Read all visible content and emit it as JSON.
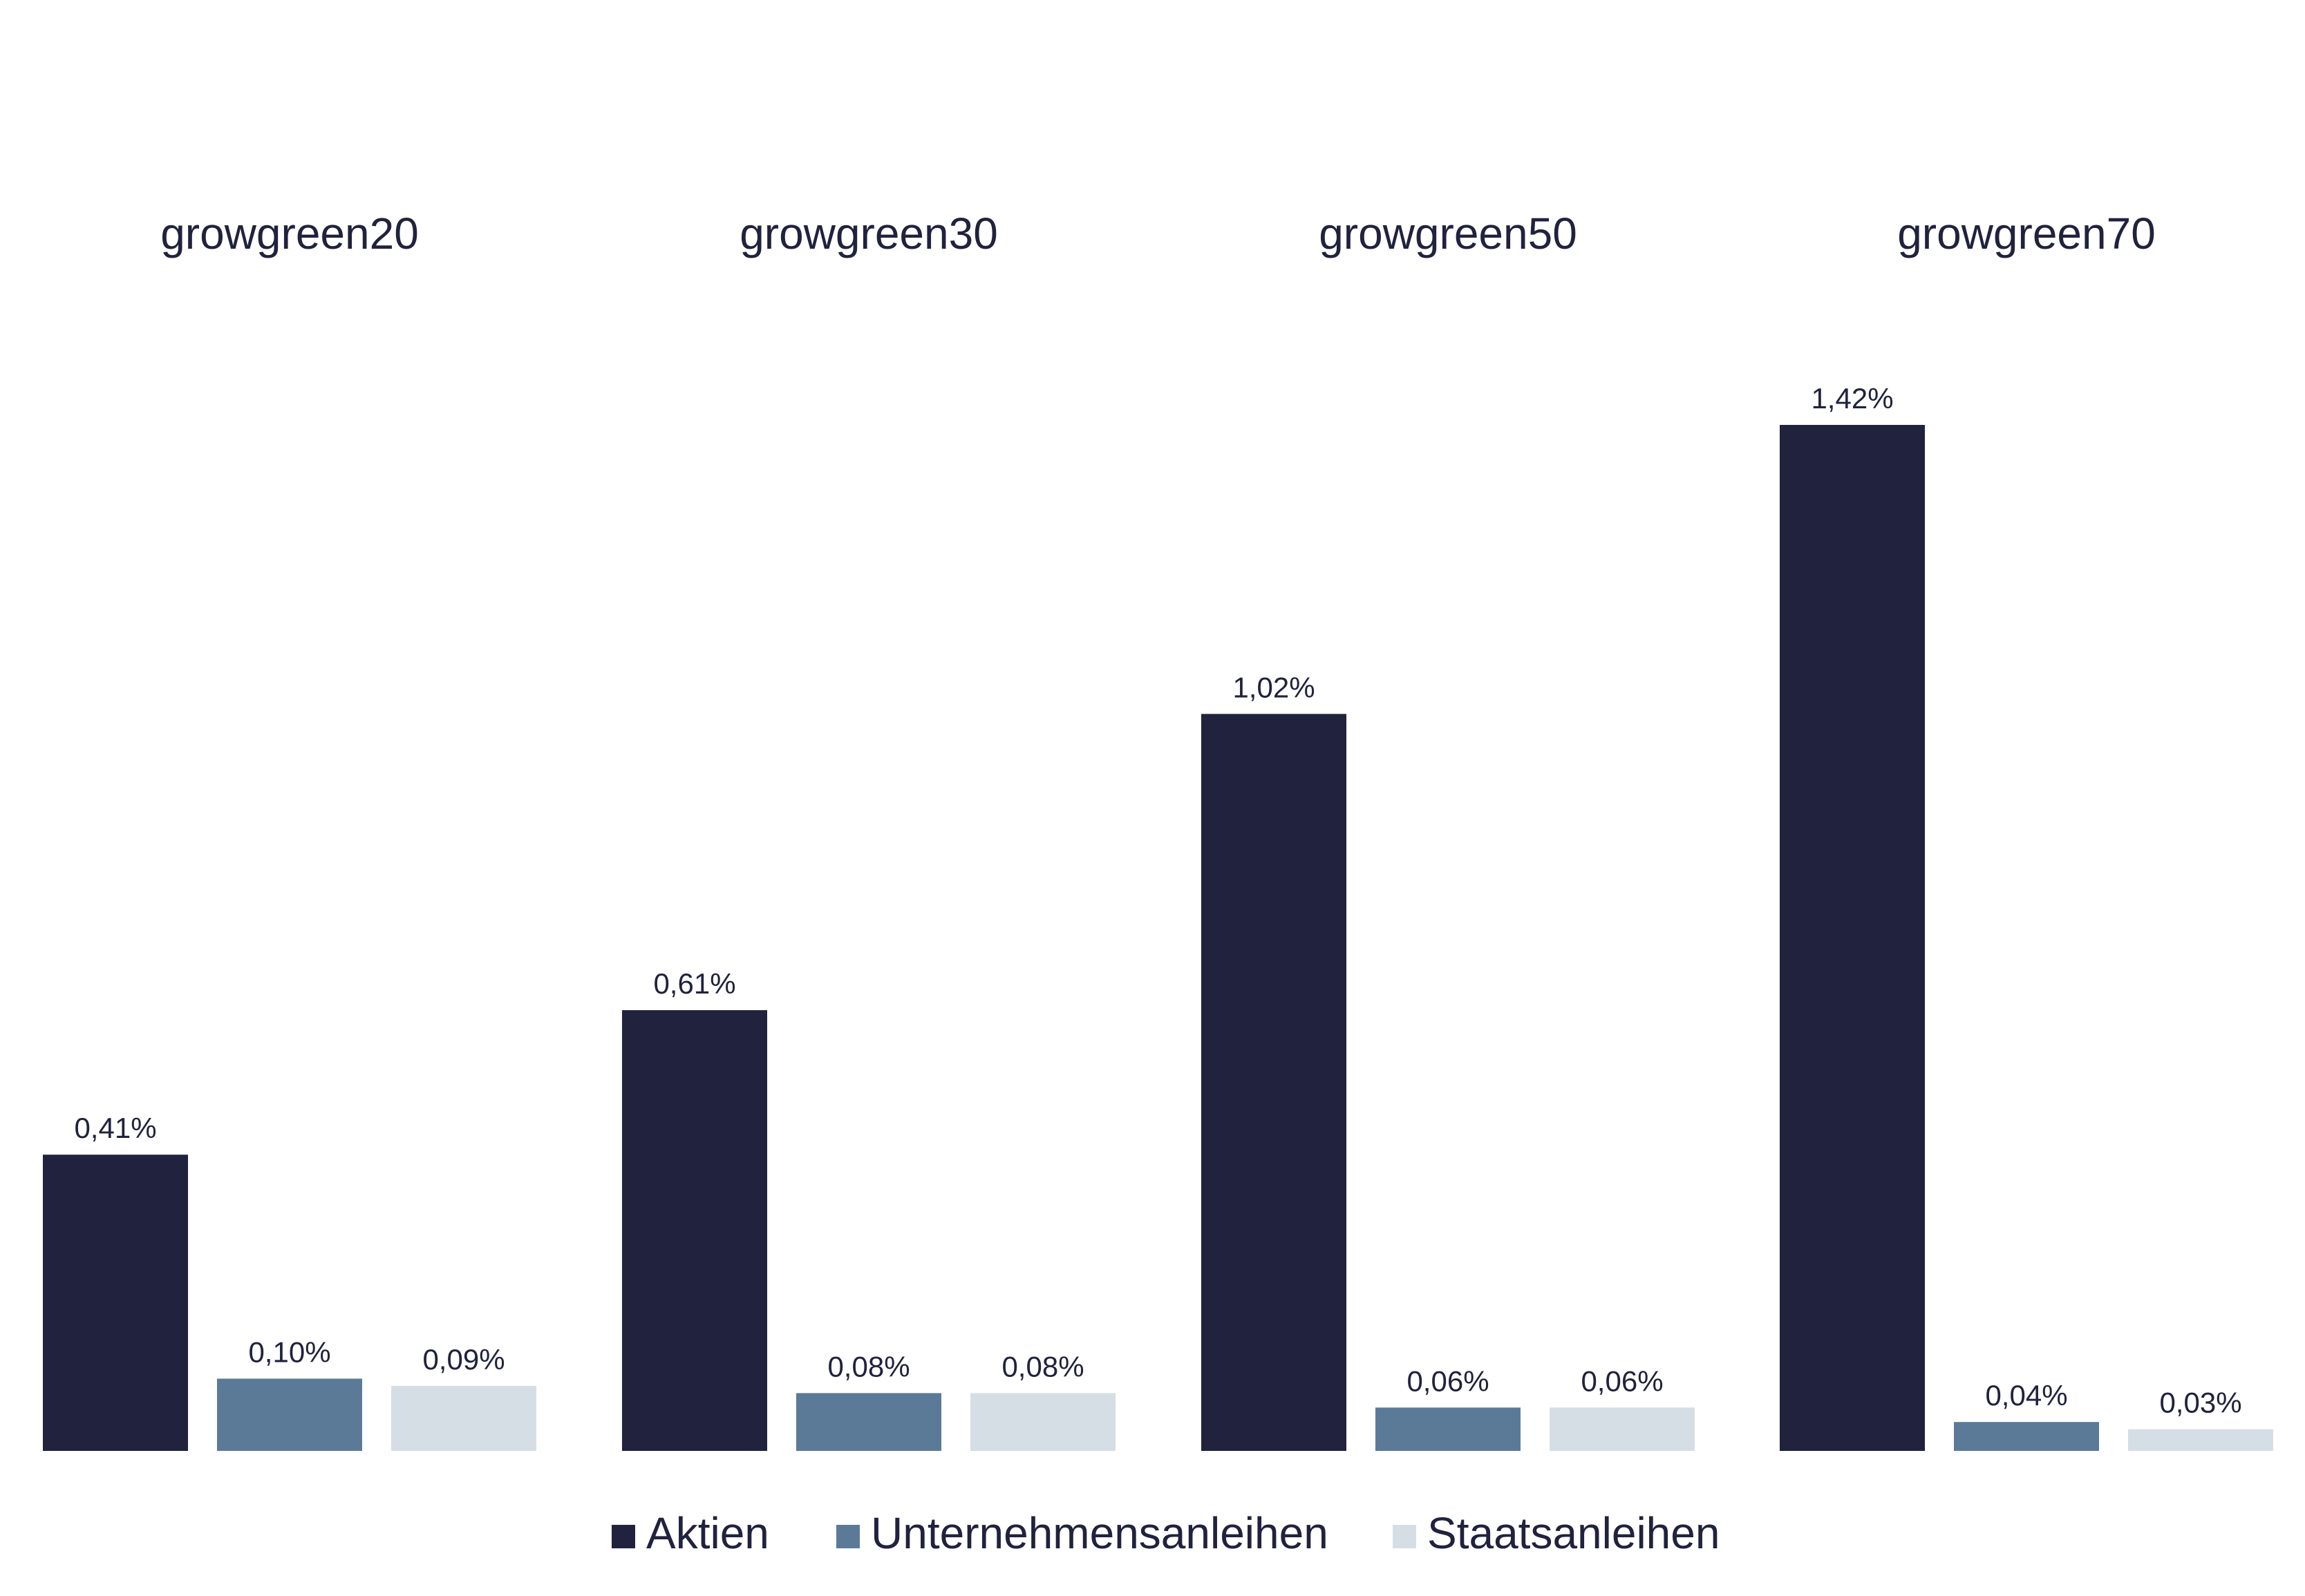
{
  "chart_data": {
    "type": "bar",
    "categories": [
      "growgreen20",
      "growgreen30",
      "growgreen50",
      "growgreen70"
    ],
    "series": [
      {
        "name": "Aktien",
        "color": "#20223e",
        "values": [
          0.41,
          0.61,
          1.02,
          1.42
        ],
        "labels": [
          "0,41%",
          "0,61%",
          "1,02%",
          "1,42%"
        ]
      },
      {
        "name": "Unternehmensanleihen",
        "color": "#5b7a98",
        "values": [
          0.1,
          0.08,
          0.06,
          0.04
        ],
        "labels": [
          "0,10%",
          "0,08%",
          "0,06%",
          "0,04%"
        ]
      },
      {
        "name": "Staatsanleihen",
        "color": "#d6dee5",
        "values": [
          0.09,
          0.08,
          0.06,
          0.03
        ],
        "labels": [
          "0,09%",
          "0,08%",
          "0,06%",
          "0,03%"
        ]
      }
    ],
    "ylim": [
      0,
      1.42
    ],
    "grid": false,
    "legend_position": "bottom-center",
    "category_label_position": "top"
  }
}
